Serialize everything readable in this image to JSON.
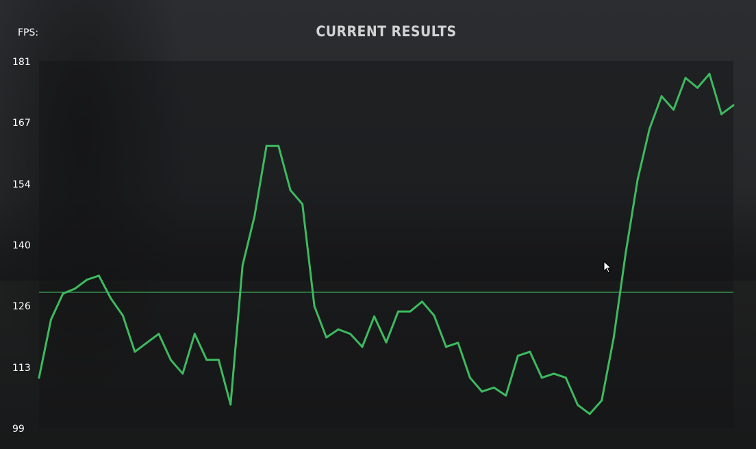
{
  "header": {
    "title": "CURRENT RESULTS"
  },
  "chart_data": {
    "type": "line",
    "title": "CURRENT RESULTS",
    "ylabel": "FPS:",
    "ylim": [
      99,
      181
    ],
    "yticks": [
      "181",
      "167",
      "154",
      "140",
      "126",
      "113",
      "99"
    ],
    "grid": false,
    "average_line": 129.6,
    "colors": {
      "line": "#3dba60",
      "average": "#3aa857"
    },
    "series": [
      {
        "values": [
          110.5,
          123.5,
          129.3,
          130.4,
          132.4,
          133.3,
          128.2,
          124.4,
          116.3,
          118.3,
          120.3,
          114.5,
          111.4,
          120.3,
          114.5,
          114.5,
          104.5,
          135.6,
          146.6,
          162.3,
          162.3,
          152.4,
          149.3,
          126.5,
          119.5,
          121.3,
          120.3,
          117.4,
          124.2,
          118.4,
          125.3,
          125.3,
          127.5,
          124.4,
          117.4,
          118.3,
          110.5,
          107.4,
          108.3,
          106.5,
          115.4,
          116.3,
          110.5,
          111.4,
          110.5,
          104.4,
          102.4,
          105.4,
          119.4,
          138.3,
          154.8,
          166.2,
          173.4,
          170.4,
          177.5,
          175.3,
          178.4,
          169.4,
          171.4
        ]
      }
    ]
  }
}
